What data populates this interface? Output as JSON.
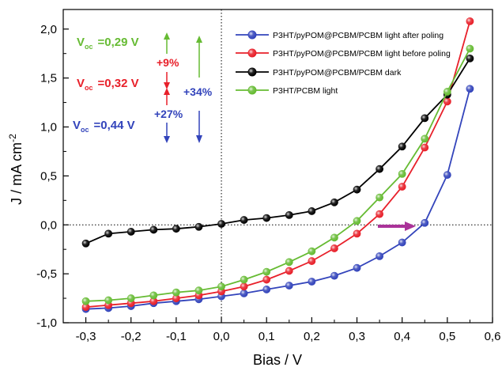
{
  "chart_data": {
    "type": "line",
    "title": "",
    "xlabel": "Bias / V",
    "ylabel_main": "J / mA cm",
    "ylabel_sup": "-2",
    "xlim": [
      -0.35,
      0.6
    ],
    "ylim": [
      -1.0,
      2.2
    ],
    "x_ticks": [
      -0.3,
      -0.2,
      -0.1,
      0.0,
      0.1,
      0.2,
      0.3,
      0.4,
      0.5,
      0.6
    ],
    "x_tick_labels": [
      "-0,3",
      "-0,2",
      "-0,1",
      "0,0",
      "0,1",
      "0,2",
      "0,3",
      "0,4",
      "0,5",
      "0,6"
    ],
    "y_ticks": [
      -1.0,
      -0.5,
      0.0,
      0.5,
      1.0,
      1.5,
      2.0
    ],
    "y_tick_labels": [
      "-1,0",
      "-0,5",
      "0,0",
      "0,5",
      "1,0",
      "1,5",
      "2,0"
    ],
    "grid": false,
    "legend_position": "top-right",
    "series": [
      {
        "name": "P3HT/pyPOM@PCBM/PCBM light after poling",
        "color": "#3344bb",
        "x": [
          -0.3,
          -0.25,
          -0.2,
          -0.15,
          -0.1,
          -0.05,
          0.0,
          0.05,
          0.1,
          0.15,
          0.2,
          0.25,
          0.3,
          0.35,
          0.4,
          0.45,
          0.5,
          0.55
        ],
        "y": [
          -0.86,
          -0.85,
          -0.83,
          -0.8,
          -0.78,
          -0.76,
          -0.73,
          -0.7,
          -0.66,
          -0.62,
          -0.58,
          -0.52,
          -0.44,
          -0.32,
          -0.18,
          0.02,
          0.51,
          1.39
        ]
      },
      {
        "name": "P3HT/pyPOM@PCBM/PCBM light before poling",
        "color": "#e8202a",
        "x": [
          -0.3,
          -0.25,
          -0.2,
          -0.15,
          -0.1,
          -0.05,
          0.0,
          0.05,
          0.1,
          0.15,
          0.2,
          0.25,
          0.3,
          0.35,
          0.4,
          0.45,
          0.5,
          0.55
        ],
        "y": [
          -0.84,
          -0.82,
          -0.8,
          -0.78,
          -0.75,
          -0.72,
          -0.68,
          -0.63,
          -0.56,
          -0.47,
          -0.37,
          -0.24,
          -0.09,
          0.11,
          0.39,
          0.79,
          1.26,
          2.08
        ]
      },
      {
        "name": "P3HT/pyPOM@PCBM/PCBM dark",
        "color": "#000000",
        "x": [
          -0.3,
          -0.25,
          -0.2,
          -0.15,
          -0.1,
          -0.05,
          0.0,
          0.05,
          0.1,
          0.15,
          0.2,
          0.25,
          0.3,
          0.35,
          0.4,
          0.45,
          0.5,
          0.55
        ],
        "y": [
          -0.19,
          -0.09,
          -0.07,
          -0.05,
          -0.04,
          -0.02,
          0.01,
          0.05,
          0.07,
          0.1,
          0.14,
          0.23,
          0.36,
          0.57,
          0.8,
          1.09,
          1.33,
          1.7
        ]
      },
      {
        "name": "P3HT/PCBM light",
        "color": "#66bb33",
        "x": [
          -0.3,
          -0.25,
          -0.2,
          -0.15,
          -0.1,
          -0.05,
          0.0,
          0.05,
          0.1,
          0.15,
          0.2,
          0.25,
          0.3,
          0.35,
          0.4,
          0.45,
          0.5,
          0.55
        ],
        "y": [
          -0.78,
          -0.77,
          -0.75,
          -0.72,
          -0.69,
          -0.67,
          -0.63,
          -0.56,
          -0.48,
          -0.38,
          -0.27,
          -0.13,
          0.04,
          0.28,
          0.52,
          0.88,
          1.36,
          1.8
        ]
      }
    ],
    "annotations": {
      "voc": [
        {
          "prefix": "V",
          "sub": "oc",
          "value": "=0,29 V",
          "color": "#66bb33"
        },
        {
          "prefix": "V",
          "sub": "oc",
          "value": "=0,32 V",
          "color": "#e8202a"
        },
        {
          "prefix": "V",
          "sub": "oc",
          "value": "=0,44 V",
          "color": "#3344bb"
        }
      ],
      "percent": [
        {
          "text": "+9%",
          "color": "#e8202a"
        },
        {
          "text": "+27%",
          "color": "#3344bb"
        },
        {
          "text": "+34%",
          "color": "#3344bb"
        }
      ],
      "arrow_colors": {
        "green": "#66bb33",
        "red": "#e8202a",
        "blue": "#3344bb",
        "magenta": "#aa3399"
      }
    }
  }
}
